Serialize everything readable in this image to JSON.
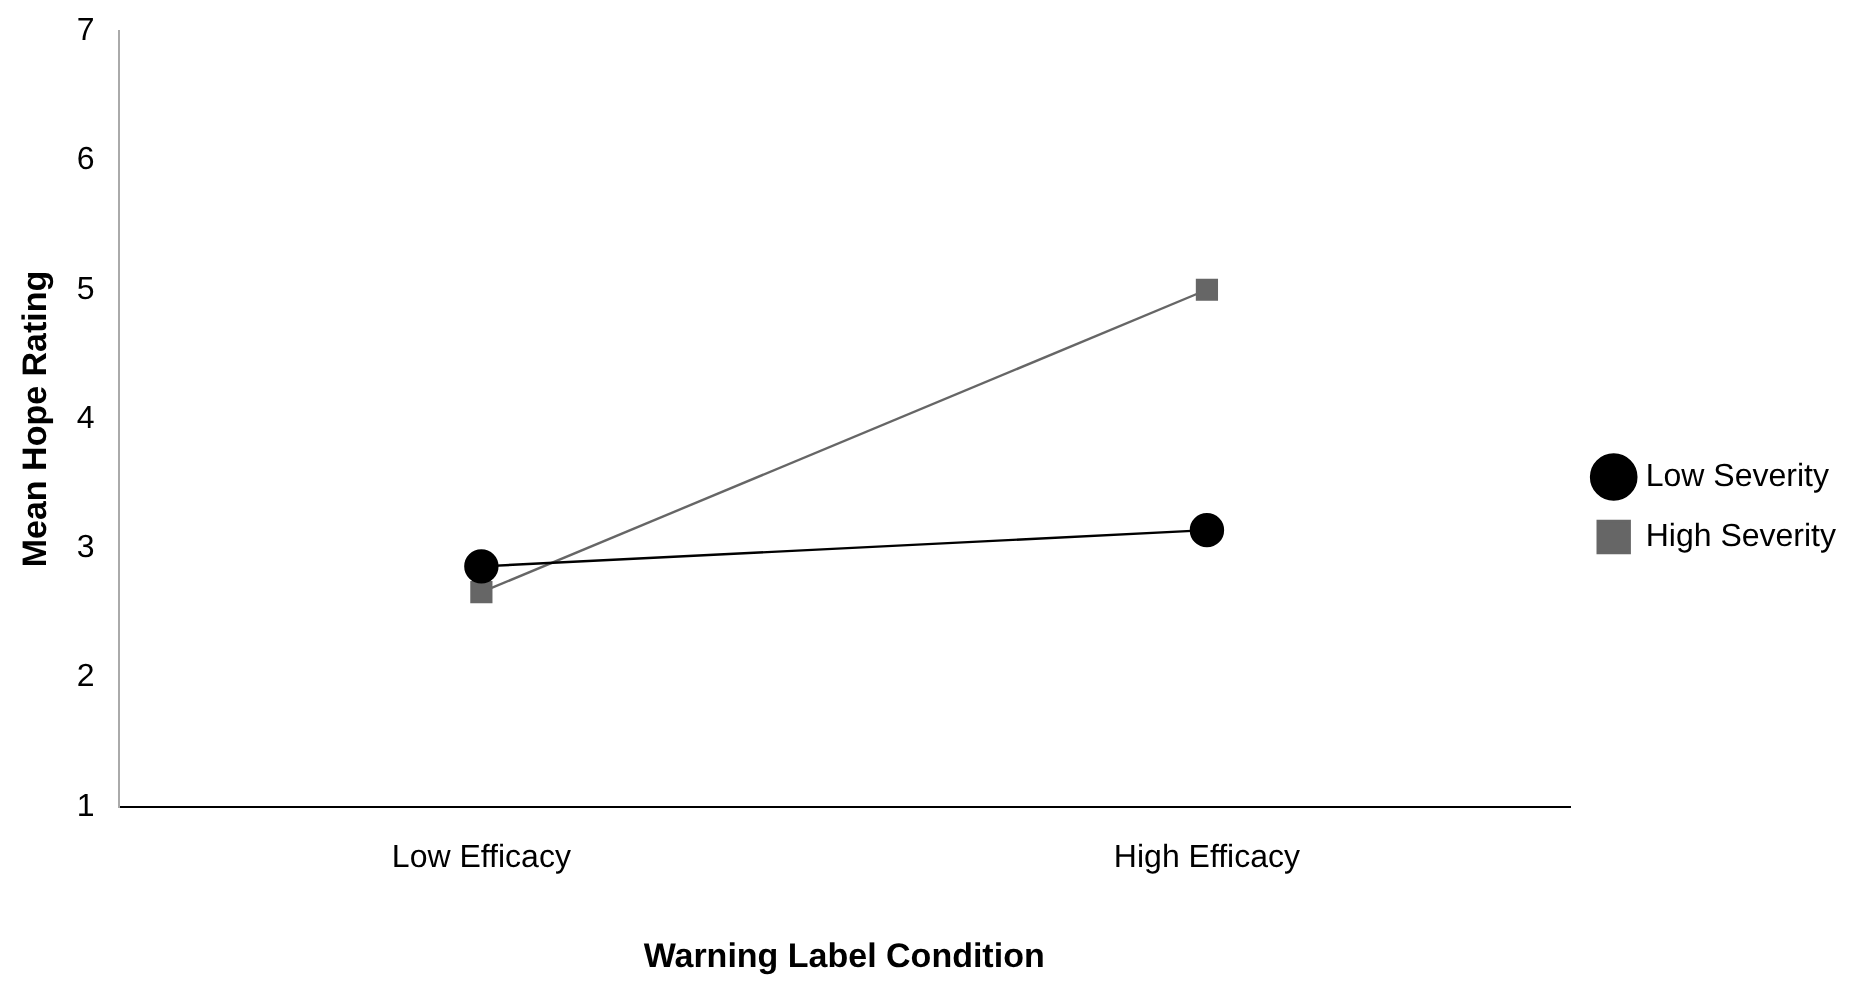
{
  "chart_data": {
    "type": "line",
    "xlabel": "Warning Label Condition",
    "ylabel": "Mean Hope Rating",
    "categories": [
      "Low Efficacy",
      "High Efficacy"
    ],
    "series": [
      {
        "name": "Low Severity",
        "color": "#000000",
        "marker": "circle",
        "values": [
          2.86,
          3.14
        ]
      },
      {
        "name": "High Severity",
        "color": "#666666",
        "marker": "square",
        "values": [
          2.66,
          5.0
        ]
      }
    ],
    "ylim": [
      1,
      7
    ],
    "yticks": [
      1,
      2,
      3,
      4,
      5,
      6,
      7
    ],
    "grid": false,
    "legend": "right",
    "line_style": "solid"
  }
}
